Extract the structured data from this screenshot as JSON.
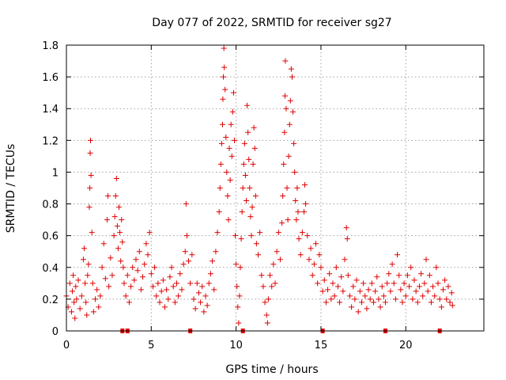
{
  "chart_data": {
    "type": "scatter",
    "title": "Day 077 of 2022, SRMTID for receiver sg27",
    "xlabel": "GPS time / hours",
    "ylabel": "SRMTID / TECUs",
    "xlim": [
      0,
      24.6
    ],
    "ylim": [
      0,
      1.8
    ],
    "xticks": [
      0,
      5,
      10,
      15,
      20
    ],
    "xtick_labels": [
      "0",
      "5",
      "10",
      "15",
      "20"
    ],
    "yticks": [
      0,
      0.2,
      0.4,
      0.6,
      0.8,
      1.0,
      1.2,
      1.4,
      1.6,
      1.8
    ],
    "ytick_labels": [
      "0",
      "0.2",
      "0.4",
      "0.6",
      "0.8",
      "1",
      "1.2",
      "1.4",
      "1.6",
      "1.8"
    ],
    "grid": true,
    "marker": "+",
    "color": "#e00000",
    "series": [
      {
        "name": "SRMTID",
        "points": [
          [
            0.0,
            0.22
          ],
          [
            0.1,
            0.15
          ],
          [
            0.2,
            0.3
          ],
          [
            0.3,
            0.12
          ],
          [
            0.35,
            0.25
          ],
          [
            0.4,
            0.35
          ],
          [
            0.45,
            0.18
          ],
          [
            0.5,
            0.08
          ],
          [
            0.55,
            0.28
          ],
          [
            0.6,
            0.2
          ],
          [
            0.7,
            0.32
          ],
          [
            0.8,
            0.14
          ],
          [
            0.9,
            0.22
          ],
          [
            1.0,
            0.45
          ],
          [
            1.05,
            0.52
          ],
          [
            1.1,
            0.3
          ],
          [
            1.15,
            0.18
          ],
          [
            1.2,
            0.1
          ],
          [
            1.25,
            0.35
          ],
          [
            1.3,
            0.42
          ],
          [
            1.35,
            0.78
          ],
          [
            1.38,
            0.9
          ],
          [
            1.4,
            1.12
          ],
          [
            1.42,
            1.2
          ],
          [
            1.45,
            0.98
          ],
          [
            1.5,
            0.62
          ],
          [
            1.55,
            0.3
          ],
          [
            1.6,
            0.12
          ],
          [
            1.7,
            0.2
          ],
          [
            1.8,
            0.26
          ],
          [
            1.9,
            0.15
          ],
          [
            2.0,
            0.22
          ],
          [
            2.1,
            0.4
          ],
          [
            2.2,
            0.55
          ],
          [
            2.3,
            0.33
          ],
          [
            2.4,
            0.7
          ],
          [
            2.45,
            0.85
          ],
          [
            2.5,
            0.28
          ],
          [
            2.6,
            0.46
          ],
          [
            2.7,
            0.35
          ],
          [
            2.8,
            0.6
          ],
          [
            2.85,
            0.72
          ],
          [
            2.9,
            0.85
          ],
          [
            2.95,
            0.96
          ],
          [
            3.0,
            0.66
          ],
          [
            3.05,
            0.52
          ],
          [
            3.1,
            0.78
          ],
          [
            3.15,
            0.62
          ],
          [
            3.2,
            0.44
          ],
          [
            3.25,
            0.7
          ],
          [
            3.3,
            0.56
          ],
          [
            3.35,
            0.4
          ],
          [
            3.4,
            0.3
          ],
          [
            3.5,
            0.22
          ],
          [
            3.6,
            0.35
          ],
          [
            3.7,
            0.18
          ],
          [
            3.8,
            0.28
          ],
          [
            3.9,
            0.4
          ],
          [
            4.0,
            0.32
          ],
          [
            4.1,
            0.45
          ],
          [
            4.2,
            0.38
          ],
          [
            4.3,
            0.5
          ],
          [
            4.4,
            0.26
          ],
          [
            4.5,
            0.34
          ],
          [
            4.6,
            0.42
          ],
          [
            4.7,
            0.55
          ],
          [
            4.8,
            0.48
          ],
          [
            4.9,
            0.62
          ],
          [
            5.0,
            0.36
          ],
          [
            5.1,
            0.28
          ],
          [
            5.2,
            0.4
          ],
          [
            5.3,
            0.22
          ],
          [
            5.4,
            0.3
          ],
          [
            5.5,
            0.18
          ],
          [
            5.6,
            0.25
          ],
          [
            5.7,
            0.32
          ],
          [
            5.8,
            0.15
          ],
          [
            5.9,
            0.26
          ],
          [
            6.0,
            0.2
          ],
          [
            6.1,
            0.34
          ],
          [
            6.2,
            0.4
          ],
          [
            6.3,
            0.28
          ],
          [
            6.4,
            0.18
          ],
          [
            6.5,
            0.3
          ],
          [
            6.6,
            0.22
          ],
          [
            6.7,
            0.36
          ],
          [
            6.8,
            0.26
          ],
          [
            6.9,
            0.42
          ],
          [
            7.0,
            0.5
          ],
          [
            7.05,
            0.8
          ],
          [
            7.1,
            0.6
          ],
          [
            7.2,
            0.44
          ],
          [
            7.3,
            0.3
          ],
          [
            7.4,
            0.48
          ],
          [
            7.5,
            0.2
          ],
          [
            7.6,
            0.14
          ],
          [
            7.7,
            0.3
          ],
          [
            7.8,
            0.24
          ],
          [
            7.9,
            0.18
          ],
          [
            8.0,
            0.28
          ],
          [
            8.1,
            0.12
          ],
          [
            8.2,
            0.22
          ],
          [
            8.3,
            0.16
          ],
          [
            8.4,
            0.3
          ],
          [
            8.5,
            0.36
          ],
          [
            8.6,
            0.44
          ],
          [
            8.7,
            0.26
          ],
          [
            8.8,
            0.5
          ],
          [
            8.9,
            0.62
          ],
          [
            9.0,
            0.75
          ],
          [
            9.05,
            0.9
          ],
          [
            9.1,
            1.05
          ],
          [
            9.15,
            1.18
          ],
          [
            9.2,
            1.3
          ],
          [
            9.22,
            1.46
          ],
          [
            9.25,
            1.6
          ],
          [
            9.28,
            1.78
          ],
          [
            9.3,
            1.66
          ],
          [
            9.35,
            1.52
          ],
          [
            9.4,
            1.22
          ],
          [
            9.45,
            1.0
          ],
          [
            9.5,
            0.85
          ],
          [
            9.55,
            0.7
          ],
          [
            9.6,
            1.15
          ],
          [
            9.65,
            0.95
          ],
          [
            9.7,
            1.3
          ],
          [
            9.75,
            1.1
          ],
          [
            9.8,
            1.38
          ],
          [
            9.85,
            1.5
          ],
          [
            9.9,
            1.2
          ],
          [
            9.95,
            0.6
          ],
          [
            10.0,
            0.42
          ],
          [
            10.05,
            0.28
          ],
          [
            10.1,
            0.15
          ],
          [
            10.15,
            0.05
          ],
          [
            10.2,
            0.22
          ],
          [
            10.25,
            0.4
          ],
          [
            10.3,
            0.58
          ],
          [
            10.35,
            0.75
          ],
          [
            10.4,
            0.9
          ],
          [
            10.45,
            1.05
          ],
          [
            10.5,
            1.18
          ],
          [
            10.55,
            0.98
          ],
          [
            10.6,
            0.82
          ],
          [
            10.65,
            1.42
          ],
          [
            10.7,
            1.25
          ],
          [
            10.75,
            1.08
          ],
          [
            10.8,
            0.9
          ],
          [
            10.85,
            0.72
          ],
          [
            10.9,
            0.6
          ],
          [
            10.95,
            0.78
          ],
          [
            11.0,
            1.05
          ],
          [
            11.05,
            1.28
          ],
          [
            11.1,
            1.15
          ],
          [
            11.15,
            0.85
          ],
          [
            11.2,
            0.55
          ],
          [
            11.3,
            0.48
          ],
          [
            11.4,
            0.62
          ],
          [
            11.5,
            0.35
          ],
          [
            11.6,
            0.28
          ],
          [
            11.7,
            0.18
          ],
          [
            11.8,
            0.1
          ],
          [
            11.85,
            0.05
          ],
          [
            11.9,
            0.2
          ],
          [
            12.0,
            0.35
          ],
          [
            12.1,
            0.28
          ],
          [
            12.2,
            0.42
          ],
          [
            12.3,
            0.3
          ],
          [
            12.4,
            0.5
          ],
          [
            12.5,
            0.62
          ],
          [
            12.6,
            0.45
          ],
          [
            12.7,
            0.68
          ],
          [
            12.75,
            0.85
          ],
          [
            12.8,
            1.05
          ],
          [
            12.85,
            1.25
          ],
          [
            12.88,
            1.48
          ],
          [
            12.9,
            1.7
          ],
          [
            12.95,
            1.4
          ],
          [
            13.0,
            0.9
          ],
          [
            13.05,
            0.7
          ],
          [
            13.1,
            1.1
          ],
          [
            13.15,
            1.3
          ],
          [
            13.2,
            1.45
          ],
          [
            13.25,
            1.65
          ],
          [
            13.3,
            1.6
          ],
          [
            13.35,
            1.38
          ],
          [
            13.4,
            1.18
          ],
          [
            13.45,
            1.0
          ],
          [
            13.5,
            0.82
          ],
          [
            13.55,
            0.7
          ],
          [
            13.6,
            0.9
          ],
          [
            13.65,
            0.75
          ],
          [
            13.7,
            0.58
          ],
          [
            13.8,
            0.48
          ],
          [
            13.9,
            0.62
          ],
          [
            14.0,
            0.75
          ],
          [
            14.05,
            0.92
          ],
          [
            14.1,
            0.8
          ],
          [
            14.2,
            0.6
          ],
          [
            14.3,
            0.45
          ],
          [
            14.4,
            0.52
          ],
          [
            14.5,
            0.35
          ],
          [
            14.6,
            0.42
          ],
          [
            14.7,
            0.55
          ],
          [
            14.8,
            0.3
          ],
          [
            14.9,
            0.48
          ],
          [
            15.0,
            0.4
          ],
          [
            15.1,
            0.25
          ],
          [
            15.2,
            0.32
          ],
          [
            15.3,
            0.18
          ],
          [
            15.4,
            0.26
          ],
          [
            15.5,
            0.36
          ],
          [
            15.6,
            0.2
          ],
          [
            15.7,
            0.3
          ],
          [
            15.8,
            0.22
          ],
          [
            15.9,
            0.4
          ],
          [
            16.0,
            0.28
          ],
          [
            16.1,
            0.18
          ],
          [
            16.2,
            0.34
          ],
          [
            16.3,
            0.25
          ],
          [
            16.4,
            0.45
          ],
          [
            16.5,
            0.65
          ],
          [
            16.55,
            0.58
          ],
          [
            16.6,
            0.35
          ],
          [
            16.7,
            0.22
          ],
          [
            16.8,
            0.15
          ],
          [
            16.9,
            0.28
          ],
          [
            17.0,
            0.2
          ],
          [
            17.1,
            0.32
          ],
          [
            17.2,
            0.12
          ],
          [
            17.3,
            0.25
          ],
          [
            17.4,
            0.18
          ],
          [
            17.5,
            0.3
          ],
          [
            17.6,
            0.22
          ],
          [
            17.7,
            0.14
          ],
          [
            17.8,
            0.26
          ],
          [
            17.9,
            0.2
          ],
          [
            18.0,
            0.3
          ],
          [
            18.1,
            0.18
          ],
          [
            18.2,
            0.25
          ],
          [
            18.3,
            0.34
          ],
          [
            18.4,
            0.2
          ],
          [
            18.5,
            0.15
          ],
          [
            18.6,
            0.28
          ],
          [
            18.7,
            0.22
          ],
          [
            18.8,
            0.18
          ],
          [
            18.9,
            0.3
          ],
          [
            19.0,
            0.36
          ],
          [
            19.1,
            0.25
          ],
          [
            19.2,
            0.42
          ],
          [
            19.3,
            0.3
          ],
          [
            19.4,
            0.2
          ],
          [
            19.5,
            0.48
          ],
          [
            19.6,
            0.35
          ],
          [
            19.7,
            0.26
          ],
          [
            19.8,
            0.18
          ],
          [
            19.9,
            0.3
          ],
          [
            20.0,
            0.22
          ],
          [
            20.1,
            0.35
          ],
          [
            20.2,
            0.28
          ],
          [
            20.3,
            0.4
          ],
          [
            20.4,
            0.2
          ],
          [
            20.5,
            0.32
          ],
          [
            20.6,
            0.25
          ],
          [
            20.7,
            0.18
          ],
          [
            20.8,
            0.28
          ],
          [
            20.9,
            0.36
          ],
          [
            21.0,
            0.22
          ],
          [
            21.1,
            0.3
          ],
          [
            21.2,
            0.45
          ],
          [
            21.3,
            0.25
          ],
          [
            21.4,
            0.35
          ],
          [
            21.5,
            0.18
          ],
          [
            21.6,
            0.28
          ],
          [
            21.7,
            0.22
          ],
          [
            21.8,
            0.4
          ],
          [
            21.9,
            0.3
          ],
          [
            22.0,
            0.2
          ],
          [
            22.1,
            0.15
          ],
          [
            22.2,
            0.26
          ],
          [
            22.3,
            0.32
          ],
          [
            22.4,
            0.2
          ],
          [
            22.5,
            0.28
          ],
          [
            22.6,
            0.18
          ],
          [
            22.7,
            0.24
          ],
          [
            22.75,
            0.16
          ]
        ]
      }
    ],
    "baseline_markers": [
      3.3,
      3.6,
      7.3,
      10.4,
      15.1,
      18.8,
      22.0
    ]
  }
}
